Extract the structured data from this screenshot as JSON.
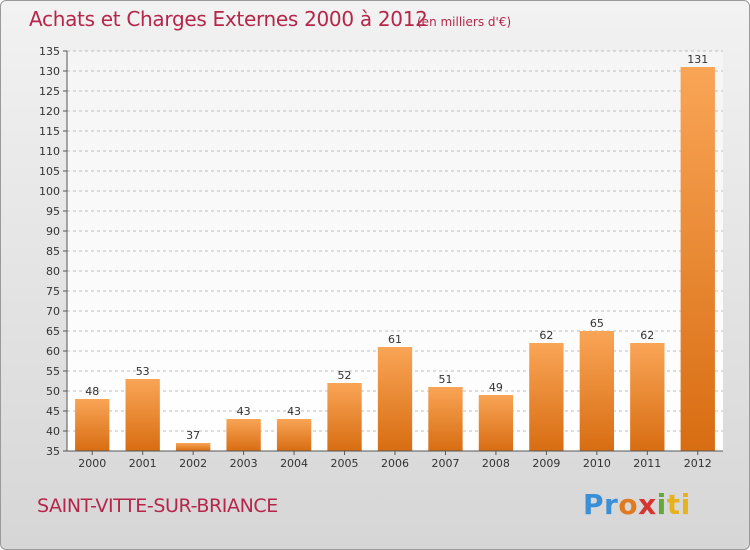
{
  "header": {
    "title": "Achats et Charges Externes 2000 à 2012",
    "unit": "(en milliers d'€)"
  },
  "footer": {
    "commune": "SAINT-VITTE-SUR-BRIANCE",
    "logo": [
      "Pr",
      "o",
      "x",
      "i",
      "ti"
    ]
  },
  "colors": {
    "title": "#b5264a",
    "bar_light": "#f9a556",
    "bar_dark": "#d86d12",
    "grid": "#bdbdbd"
  },
  "chart_data": {
    "type": "bar",
    "categories": [
      "2000",
      "2001",
      "2002",
      "2003",
      "2004",
      "2005",
      "2006",
      "2007",
      "2008",
      "2009",
      "2010",
      "2011",
      "2012"
    ],
    "values": [
      48,
      53,
      37,
      43,
      43,
      52,
      61,
      51,
      49,
      62,
      65,
      62,
      131
    ],
    "title": "Achats et Charges Externes 2000 à 2012",
    "ylim": [
      35,
      135
    ],
    "yticks": [
      35,
      40,
      45,
      50,
      55,
      60,
      65,
      70,
      75,
      80,
      85,
      90,
      95,
      100,
      105,
      110,
      115,
      120,
      125,
      130,
      135
    ],
    "grid": true,
    "data_labels": true
  }
}
